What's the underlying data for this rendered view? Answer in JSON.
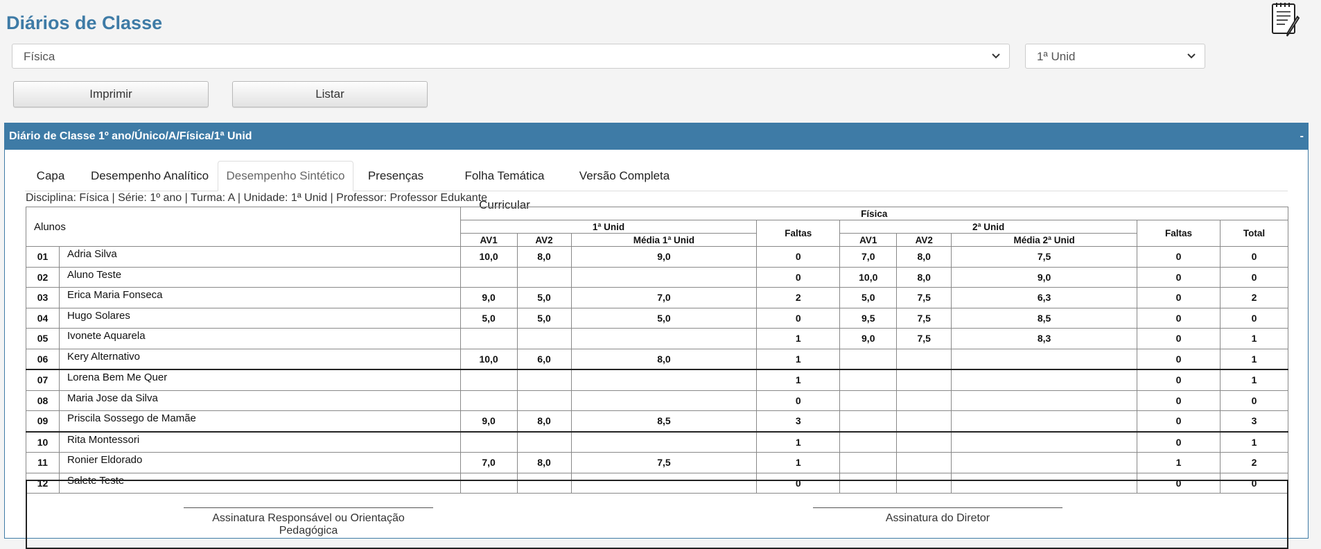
{
  "page": {
    "title": "Diários de Classe"
  },
  "filters": {
    "discipline": "Física",
    "unit": "1ª Unid"
  },
  "toolbar": {
    "print_label": "Imprimir",
    "list_label": "Listar"
  },
  "panel": {
    "title": "Diário de Classe 1º ano/Único/A/Física/1ª Unid",
    "collapse_label": "-"
  },
  "tabs": [
    {
      "label": "Capa"
    },
    {
      "label": "Desempenho Analítico"
    },
    {
      "label": "Desempenho Sintético"
    },
    {
      "label": "Presenças"
    },
    {
      "label": "Folha Temática Curricular"
    },
    {
      "label": "Versão Completa"
    }
  ],
  "info_line": "Disciplina: Física | Série: 1º ano | Turma: A | Unidade: 1ª Unid | Professor: Professor Edukante",
  "table": {
    "alunos_label": "Alunos",
    "subject_header": "Física",
    "unit1_header": "1ª Unid",
    "unit2_header": "2ª Unid",
    "av1": "AV1",
    "av2": "AV2",
    "media1": "Média 1ª Unid",
    "media2": "Média 2ª Unid",
    "faltas": "Faltas",
    "total": "Total",
    "rows": [
      {
        "num": "01",
        "name": "Adria Silva",
        "u1_av1": "10,0",
        "u1_av2": "8,0",
        "u1_media": "9,0",
        "u1_faltas": "0",
        "u2_av1": "7,0",
        "u2_av2": "8,0",
        "u2_media": "7,5",
        "u2_faltas": "0",
        "total": "0"
      },
      {
        "num": "02",
        "name": "Aluno Teste",
        "u1_av1": "",
        "u1_av2": "",
        "u1_media": "",
        "u1_faltas": "0",
        "u2_av1": "10,0",
        "u2_av2": "8,0",
        "u2_media": "9,0",
        "u2_faltas": "0",
        "total": "0"
      },
      {
        "num": "03",
        "name": "Erica Maria Fonseca",
        "u1_av1": "9,0",
        "u1_av2": "5,0",
        "u1_media": "7,0",
        "u1_faltas": "2",
        "u2_av1": "5,0",
        "u2_av2": "7,5",
        "u2_media": "6,3",
        "u2_faltas": "0",
        "total": "2"
      },
      {
        "num": "04",
        "name": "Hugo Solares",
        "u1_av1": "5,0",
        "u1_av2": "5,0",
        "u1_media": "5,0",
        "u1_faltas": "0",
        "u2_av1": "9,5",
        "u2_av2": "7,5",
        "u2_media": "8,5",
        "u2_faltas": "0",
        "total": "0"
      },
      {
        "num": "05",
        "name": "Ivonete Aquarela",
        "u1_av1": "",
        "u1_av2": "",
        "u1_media": "",
        "u1_faltas": "1",
        "u2_av1": "9,0",
        "u2_av2": "7,5",
        "u2_media": "8,3",
        "u2_faltas": "0",
        "total": "1"
      },
      {
        "num": "06",
        "name": "Kery Alternativo",
        "u1_av1": "10,0",
        "u1_av2": "6,0",
        "u1_media": "8,0",
        "u1_faltas": "1",
        "u2_av1": "",
        "u2_av2": "",
        "u2_media": "",
        "u2_faltas": "0",
        "total": "1"
      },
      {
        "num": "07",
        "name": "Lorena Bem Me Quer",
        "u1_av1": "",
        "u1_av2": "",
        "u1_media": "",
        "u1_faltas": "1",
        "u2_av1": "",
        "u2_av2": "",
        "u2_media": "",
        "u2_faltas": "0",
        "total": "1"
      },
      {
        "num": "08",
        "name": "Maria Jose da Silva",
        "u1_av1": "",
        "u1_av2": "",
        "u1_media": "",
        "u1_faltas": "0",
        "u2_av1": "",
        "u2_av2": "",
        "u2_media": "",
        "u2_faltas": "0",
        "total": "0"
      },
      {
        "num": "09",
        "name": "Priscila Sossego de Mamãe",
        "u1_av1": "9,0",
        "u1_av2": "8,0",
        "u1_media": "8,5",
        "u1_faltas": "3",
        "u2_av1": "",
        "u2_av2": "",
        "u2_media": "",
        "u2_faltas": "0",
        "total": "3"
      },
      {
        "num": "10",
        "name": "Rita Montessori",
        "u1_av1": "",
        "u1_av2": "",
        "u1_media": "",
        "u1_faltas": "1",
        "u2_av1": "",
        "u2_av2": "",
        "u2_media": "",
        "u2_faltas": "0",
        "total": "1"
      },
      {
        "num": "11",
        "name": "Ronier Eldorado",
        "u1_av1": "7,0",
        "u1_av2": "8,0",
        "u1_media": "7,5",
        "u1_faltas": "1",
        "u2_av1": "",
        "u2_av2": "",
        "u2_media": "",
        "u2_faltas": "1",
        "total": "2"
      },
      {
        "num": "12",
        "name": "Salete Teste",
        "u1_av1": "",
        "u1_av2": "",
        "u1_media": "",
        "u1_faltas": "0",
        "u2_av1": "",
        "u2_av2": "",
        "u2_media": "",
        "u2_faltas": "0",
        "total": "0"
      }
    ]
  },
  "signatures": {
    "left": "Assinatura Responsável ou Orientação Pedagógica",
    "right": "Assinatura do Diretor"
  },
  "colors": {
    "accent": "#3e7ba6"
  },
  "icons": {
    "top_right": "notebook-pencil-icon"
  }
}
